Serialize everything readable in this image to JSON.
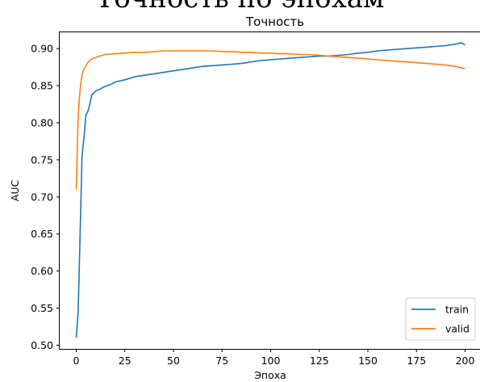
{
  "top_caption": "Точность по эпохам",
  "chart_data": {
    "type": "line",
    "title": "Точность",
    "xlabel": "Эпоха",
    "ylabel": "AUC",
    "xlim": [
      -8.5,
      208.5
    ],
    "ylim": [
      0.495,
      0.922
    ],
    "xticks": [
      0,
      25,
      50,
      75,
      100,
      125,
      150,
      175,
      200
    ],
    "yticks": [
      0.5,
      0.55,
      0.6,
      0.65,
      0.7,
      0.75,
      0.8,
      0.85,
      0.9
    ],
    "ytick_labels": [
      "0.50",
      "0.55",
      "0.60",
      "0.65",
      "0.70",
      "0.75",
      "0.80",
      "0.85",
      "0.90"
    ],
    "legend_position": "lower-right",
    "grid": false,
    "series": [
      {
        "name": "train",
        "color": "#1f77b4",
        "x": [
          0,
          1,
          2,
          3,
          4,
          5,
          6,
          7,
          8,
          9,
          10,
          12,
          14,
          16,
          18,
          20,
          25,
          30,
          35,
          40,
          45,
          50,
          55,
          60,
          65,
          70,
          75,
          80,
          85,
          90,
          95,
          100,
          105,
          110,
          115,
          120,
          125,
          130,
          135,
          140,
          145,
          150,
          155,
          160,
          165,
          170,
          175,
          180,
          185,
          190,
          195,
          198,
          200
        ],
        "y": [
          0.51,
          0.545,
          0.65,
          0.755,
          0.78,
          0.81,
          0.815,
          0.825,
          0.838,
          0.84,
          0.843,
          0.845,
          0.848,
          0.85,
          0.852,
          0.855,
          0.858,
          0.862,
          0.864,
          0.866,
          0.868,
          0.87,
          0.872,
          0.874,
          0.876,
          0.877,
          0.878,
          0.879,
          0.88,
          0.882,
          0.884,
          0.885,
          0.886,
          0.887,
          0.888,
          0.889,
          0.89,
          0.89,
          0.891,
          0.892,
          0.894,
          0.895,
          0.897,
          0.898,
          0.899,
          0.9,
          0.901,
          0.902,
          0.903,
          0.904,
          0.906,
          0.908,
          0.905
        ]
      },
      {
        "name": "valid",
        "color": "#ff7f0e",
        "x": [
          0,
          1,
          2,
          3,
          4,
          5,
          6,
          7,
          8,
          9,
          10,
          12,
          15,
          20,
          25,
          30,
          35,
          40,
          45,
          50,
          55,
          60,
          65,
          70,
          75,
          80,
          85,
          90,
          95,
          100,
          105,
          110,
          115,
          120,
          125,
          130,
          135,
          140,
          145,
          150,
          155,
          160,
          165,
          170,
          175,
          180,
          185,
          190,
          195,
          200
        ],
        "y": [
          0.71,
          0.81,
          0.845,
          0.865,
          0.872,
          0.877,
          0.881,
          0.884,
          0.886,
          0.887,
          0.888,
          0.89,
          0.892,
          0.893,
          0.894,
          0.895,
          0.895,
          0.896,
          0.897,
          0.897,
          0.897,
          0.897,
          0.897,
          0.897,
          0.896,
          0.896,
          0.895,
          0.895,
          0.894,
          0.894,
          0.893,
          0.893,
          0.892,
          0.892,
          0.891,
          0.89,
          0.889,
          0.888,
          0.887,
          0.886,
          0.885,
          0.884,
          0.883,
          0.882,
          0.881,
          0.88,
          0.879,
          0.878,
          0.876,
          0.873
        ]
      }
    ]
  }
}
